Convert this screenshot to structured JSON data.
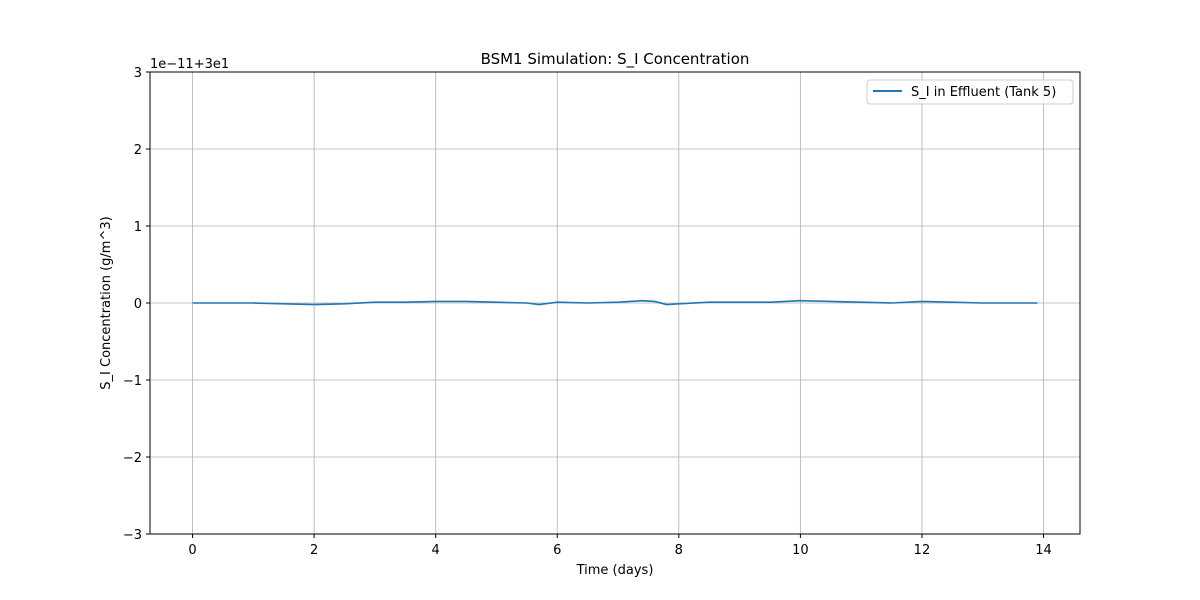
{
  "chart_data": {
    "type": "line",
    "title": "BSM1 Simulation: S_I Concentration",
    "xlabel": "Time (days)",
    "ylabel": "S_I Concentration (g/m^3)",
    "offset_label": "1e−11+3e1",
    "xlim": [
      -0.7,
      14.6
    ],
    "ylim": [
      -3,
      3
    ],
    "xticks": [
      0,
      2,
      4,
      6,
      8,
      10,
      12,
      14
    ],
    "yticks": [
      -3,
      -2,
      -1,
      0,
      1,
      2,
      3
    ],
    "ytick_labels": [
      "−3",
      "−2",
      "−1",
      "0",
      "1",
      "2",
      "3"
    ],
    "grid": true,
    "legend": "top-right",
    "series": [
      {
        "name": "S_I in Effluent (Tank 5)",
        "color": "#1f77b4",
        "x": [
          0,
          0.5,
          1,
          1.5,
          2,
          2.5,
          3,
          3.5,
          4,
          4.5,
          5,
          5.5,
          5.7,
          6,
          6.5,
          7,
          7.4,
          7.6,
          7.8,
          8,
          8.5,
          9,
          9.5,
          10,
          10.5,
          11,
          11.5,
          12,
          12.5,
          13,
          13.5,
          13.9
        ],
        "y": [
          0,
          0,
          0,
          -0.01,
          -0.02,
          -0.01,
          0.01,
          0.01,
          0.02,
          0.02,
          0.01,
          0,
          -0.02,
          0.01,
          0,
          0.01,
          0.03,
          0.02,
          -0.02,
          -0.01,
          0.01,
          0.01,
          0.01,
          0.03,
          0.02,
          0.01,
          0,
          0.02,
          0.01,
          0,
          0,
          0
        ]
      }
    ]
  }
}
